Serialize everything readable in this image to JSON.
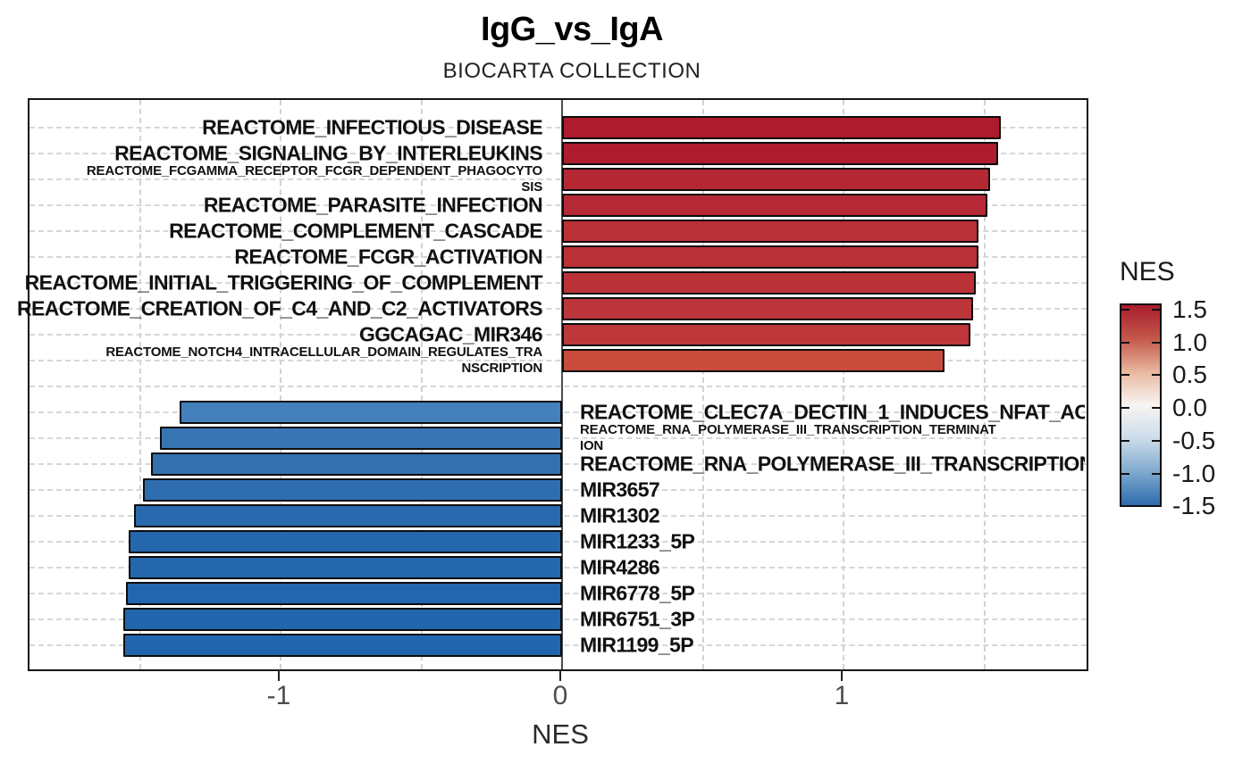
{
  "title": "IgG_vs_IgA",
  "subtitle": "BIOCARTA COLLECTION",
  "x_axis": {
    "label": "NES",
    "ticks": [
      "-1",
      "0",
      "1"
    ],
    "tick_values": [
      -1,
      0,
      1
    ]
  },
  "legend": {
    "title": "NES",
    "ticks": [
      "1.5",
      "1.0",
      "0.5",
      "0.0",
      "-0.5",
      "-1.0",
      "-1.5"
    ],
    "tick_values": [
      1.5,
      1.0,
      0.5,
      0.0,
      -0.5,
      -1.0,
      -1.5
    ],
    "gradient": [
      "#A91C2C",
      "#C3584A",
      "#E9B7A0",
      "#F8F5F2",
      "#CBDCEA",
      "#7FA9CD",
      "#2E6CAE"
    ]
  },
  "chart_data": {
    "type": "bar",
    "orientation": "horizontal",
    "title": "IgG_vs_IgA",
    "subtitle": "BIOCARTA COLLECTION",
    "xlabel": "NES",
    "xlim": [
      -1.89,
      1.87
    ],
    "grid": "dashed",
    "gridline_x_values": [
      -1.5,
      -1.0,
      -0.5,
      0.5,
      1.0,
      1.5
    ],
    "color_encoding": "NES value mapped to red-blue diverging scale (-1.5 to 1.5)",
    "bars": [
      {
        "label": "REACTOME_INFECTIOUS_DISEASE",
        "nes": 1.56,
        "color": "#AD1B2C",
        "small": false,
        "lines": [
          "REACTOME_INFECTIOUS_DISEASE"
        ]
      },
      {
        "label": "REACTOME_SIGNALING_BY_INTERLEUKINS",
        "nes": 1.55,
        "color": "#AE1D2D",
        "small": false,
        "lines": [
          "REACTOME_SIGNALING_BY_INTERLEUKINS"
        ]
      },
      {
        "label": "REACTOME_FCGAMMA_RECEPTOR_FCGR_DEPENDENT_PHAGOCYTOSIS",
        "nes": 1.52,
        "color": "#B42733",
        "small": true,
        "lines": [
          "REACTOME_FCGAMMA_RECEPTOR_FCGR_DEPENDENT_PHAGOCYTO",
          "SIS"
        ]
      },
      {
        "label": "REACTOME_PARASITE_INFECTION",
        "nes": 1.51,
        "color": "#B52835",
        "small": false,
        "lines": [
          "REACTOME_PARASITE_INFECTION"
        ]
      },
      {
        "label": "REACTOME_COMPLEMENT_CASCADE",
        "nes": 1.48,
        "color": "#B93036",
        "small": false,
        "lines": [
          "REACTOME_COMPLEMENT_CASCADE"
        ]
      },
      {
        "label": "REACTOME_FCGR_ACTIVATION",
        "nes": 1.48,
        "color": "#B93036",
        "small": false,
        "lines": [
          "REACTOME_FCGR_ACTIVATION"
        ]
      },
      {
        "label": "REACTOME_INITIAL_TRIGGERING_OF_COMPLEMENT",
        "nes": 1.47,
        "color": "#BA3137",
        "small": false,
        "lines": [
          "REACTOME_INITIAL_TRIGGERING_OF_COMPLEMENT"
        ]
      },
      {
        "label": "REACTOME_CREATION_OF_C4_AND_C2_ACTIVATORS",
        "nes": 1.46,
        "color": "#BC353A",
        "small": false,
        "lines": [
          "REACTOME_CREATION_OF_C4_AND_C2_ACTIVATORS"
        ]
      },
      {
        "label": "GGCAGAC_MIR346",
        "nes": 1.45,
        "color": "#BD373B",
        "small": false,
        "lines": [
          "GGCAGAC_MIR346"
        ]
      },
      {
        "label": "REACTOME_NOTCH4_INTRACELLULAR_DOMAIN_REGULATES_TRANSCRIPTION",
        "nes": 1.36,
        "color": "#C84B3C",
        "small": true,
        "lines": [
          "REACTOME_NOTCH4_INTRACELLULAR_DOMAIN_REGULATES_TRA",
          "NSCRIPTION"
        ]
      },
      {
        "label": "REACTOME_CLEC7A_DECTIN_1_INDUCES_NFAT_AC",
        "nes": -1.36,
        "color": "#4380BC",
        "small": false,
        "lines": [
          "REACTOME_CLEC7A_DECTIN_1_INDUCES_NFAT_AC"
        ]
      },
      {
        "label": "REACTOME_RNA_POLYMERASE_III_TRANSCRIPTION_TERMINATION",
        "nes": -1.43,
        "color": "#3875B4",
        "small": true,
        "lines": [
          "REACTOME_RNA_POLYMERASE_III_TRANSCRIPTION_TERMINAT",
          "ION"
        ]
      },
      {
        "label": "REACTOME_RNA_POLYMERASE_III_TRANSCRIPTION",
        "nes": -1.46,
        "color": "#3371B1",
        "small": false,
        "lines": [
          "REACTOME_RNA_POLYMERASE_III_TRANSCRIPTION"
        ]
      },
      {
        "label": "MIR3657",
        "nes": -1.49,
        "color": "#2E6DAF",
        "small": false,
        "lines": [
          "MIR3657"
        ]
      },
      {
        "label": "MIR1302",
        "nes": -1.52,
        "color": "#296AAE",
        "small": false,
        "lines": [
          "MIR1302"
        ]
      },
      {
        "label": "MIR1233_5P",
        "nes": -1.54,
        "color": "#2467AD",
        "small": false,
        "lines": [
          "MIR1233_5P"
        ]
      },
      {
        "label": "MIR4286",
        "nes": -1.54,
        "color": "#2467AD",
        "small": false,
        "lines": [
          "MIR4286"
        ]
      },
      {
        "label": "MIR6778_5P",
        "nes": -1.55,
        "color": "#2266AD",
        "small": false,
        "lines": [
          "MIR6778_5P"
        ]
      },
      {
        "label": "MIR6751_3P",
        "nes": -1.56,
        "color": "#2166AC",
        "small": false,
        "lines": [
          "MIR6751_3P"
        ]
      },
      {
        "label": "MIR1199_5P",
        "nes": -1.56,
        "color": "#2166AC",
        "small": false,
        "lines": [
          "MIR1199_5P"
        ]
      }
    ]
  }
}
